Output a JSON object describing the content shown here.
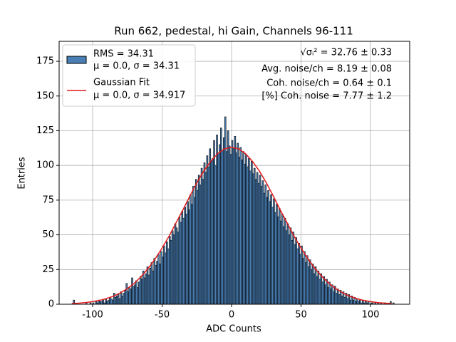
{
  "chart_data": {
    "type": "histogram",
    "title": "Run 662, pedestal, hi Gain, Channels 96-111",
    "x_label": "ADC Counts",
    "y_label": "Entries",
    "xlim": [
      -124.1,
      128.2
    ],
    "ylim": [
      0,
      189.4
    ],
    "xticks": [
      -100,
      -50,
      0,
      50,
      100
    ],
    "yticks": [
      0,
      25,
      50,
      75,
      100,
      125,
      150,
      175
    ],
    "grid": true,
    "legend": "upper left",
    "histogram": {
      "name": "RMS = 34.31",
      "name_line2": "μ = 0.0, σ = 34.31",
      "color": "#4a7fb5",
      "edgecolor": "#000000",
      "bins": [
        -114,
        -113,
        -112,
        -111,
        -110,
        -109,
        -108,
        -107,
        -106,
        -105,
        -104,
        -103,
        -102,
        -101,
        -100,
        -99,
        -98,
        -97,
        -96,
        -95,
        -94,
        -93,
        -92,
        -91,
        -90,
        -89,
        -88,
        -87,
        -86,
        -85,
        -84,
        -83,
        -82,
        -81,
        -80,
        -79,
        -78,
        -77,
        -76,
        -75,
        -74,
        -73,
        -72,
        -71,
        -70,
        -69,
        -68,
        -67,
        -66,
        -65,
        -64,
        -63,
        -62,
        -61,
        -60,
        -59,
        -58,
        -57,
        -56,
        -55,
        -54,
        -53,
        -52,
        -51,
        -50,
        -49,
        -48,
        -47,
        -46,
        -45,
        -44,
        -43,
        -42,
        -41,
        -40,
        -39,
        -38,
        -37,
        -36,
        -35,
        -34,
        -33,
        -32,
        -31,
        -30,
        -29,
        -28,
        -27,
        -26,
        -25,
        -24,
        -23,
        -22,
        -21,
        -20,
        -19,
        -18,
        -17,
        -16,
        -15,
        -14,
        -13,
        -12,
        -11,
        -10,
        -9,
        -8,
        -7,
        -6,
        -5,
        -4,
        -3,
        -2,
        -1,
        0,
        1,
        2,
        3,
        4,
        5,
        6,
        7,
        8,
        9,
        10,
        11,
        12,
        13,
        14,
        15,
        16,
        17,
        18,
        19,
        20,
        21,
        22,
        23,
        24,
        25,
        26,
        27,
        28,
        29,
        30,
        31,
        32,
        33,
        34,
        35,
        36,
        37,
        38,
        39,
        40,
        41,
        42,
        43,
        44,
        45,
        46,
        47,
        48,
        49,
        50,
        51,
        52,
        53,
        54,
        55,
        56,
        57,
        58,
        59,
        60,
        61,
        62,
        63,
        64,
        65,
        66,
        67,
        68,
        69,
        70,
        71,
        72,
        73,
        74,
        75,
        76,
        77,
        78,
        79,
        80,
        81,
        82,
        83,
        84,
        85,
        86,
        87,
        88,
        89,
        90,
        91,
        92,
        93,
        94,
        95,
        96,
        97,
        98,
        99,
        100,
        101,
        102,
        103,
        104,
        105,
        106,
        107,
        108,
        109,
        110,
        111,
        112,
        113,
        114,
        115,
        116,
        117
      ],
      "counts": [
        3,
        0,
        0,
        0,
        0,
        0,
        0,
        0,
        0,
        1,
        0,
        0,
        1,
        0,
        1,
        0,
        2,
        1,
        3,
        2,
        2,
        3,
        1,
        4,
        2,
        3,
        5,
        4,
        3,
        8,
        5,
        6,
        7,
        4,
        9,
        6,
        8,
        10,
        15,
        9,
        12,
        11,
        19,
        13,
        14,
        17,
        12,
        16,
        20,
        18,
        24,
        19,
        22,
        27,
        21,
        26,
        30,
        24,
        33,
        28,
        31,
        36,
        29,
        38,
        34,
        42,
        37,
        45,
        40,
        49,
        46,
        53,
        50,
        58,
        55,
        52,
        63,
        59,
        67,
        62,
        70,
        65,
        74,
        68,
        79,
        72,
        85,
        77,
        90,
        82,
        93,
        86,
        98,
        90,
        102,
        95,
        107,
        99,
        112,
        103,
        105,
        118,
        100,
        122,
        109,
        115,
        127,
        111,
        120,
        135,
        110,
        125,
        114,
        108,
        118,
        112,
        121,
        109,
        116,
        106,
        113,
        104,
        110,
        101,
        108,
        99,
        105,
        96,
        103,
        94,
        98,
        90,
        95,
        87,
        93,
        85,
        89,
        80,
        86,
        77,
        82,
        74,
        79,
        70,
        76,
        66,
        72,
        63,
        69,
        60,
        65,
        56,
        62,
        53,
        58,
        50,
        55,
        46,
        52,
        43,
        48,
        40,
        44,
        36,
        42,
        33,
        38,
        30,
        35,
        27,
        32,
        25,
        29,
        22,
        27,
        20,
        24,
        18,
        22,
        16,
        20,
        14,
        18,
        12,
        16,
        11,
        14,
        9,
        13,
        8,
        11,
        7,
        10,
        6,
        9,
        5,
        8,
        4,
        7,
        3,
        6,
        3,
        5,
        2,
        4,
        2,
        3,
        1,
        3,
        1,
        2,
        1,
        2,
        0,
        1,
        1,
        0,
        1,
        0,
        1,
        0,
        1,
        0,
        0,
        1,
        0,
        0,
        0,
        2,
        0,
        1
      ]
    },
    "fit": {
      "name": "Gaussian Fit",
      "name_line2": "μ = 0.0, σ = 34.917",
      "color": "#e41a1c",
      "x": [
        -115,
        -110,
        -105,
        -100,
        -95,
        -90,
        -85,
        -80,
        -75,
        -70,
        -65,
        -60,
        -55,
        -50,
        -45,
        -40,
        -35,
        -30,
        -25,
        -20,
        -15,
        -10,
        -5,
        0,
        5,
        10,
        15,
        20,
        25,
        30,
        35,
        40,
        45,
        50,
        55,
        60,
        65,
        70,
        75,
        80,
        85,
        90,
        95,
        100,
        105,
        110,
        115
      ],
      "values": [
        0.5,
        0.8,
        1.2,
        1.9,
        2.8,
        4.1,
        5.8,
        8.2,
        11.3,
        15.1,
        20,
        25.8,
        32.7,
        40.5,
        49,
        58.6,
        68,
        78,
        87.5,
        96,
        103,
        108.5,
        112,
        113,
        112,
        108.5,
        103,
        96,
        87.5,
        78,
        68,
        58.6,
        49,
        40.5,
        32.7,
        25.8,
        20,
        15.1,
        11.3,
        8.2,
        5.8,
        4.1,
        2.8,
        1.9,
        1.2,
        0.8,
        0.5
      ]
    },
    "annotations": [
      "√σᵢ² = 32.76 ± 0.33",
      "Avg. noise/ch = 8.19 ± 0.08",
      "Coh. noise/ch = 0.64 ± 0.1",
      "[%] Coh. noise = 7.77 ± 1.2"
    ]
  }
}
